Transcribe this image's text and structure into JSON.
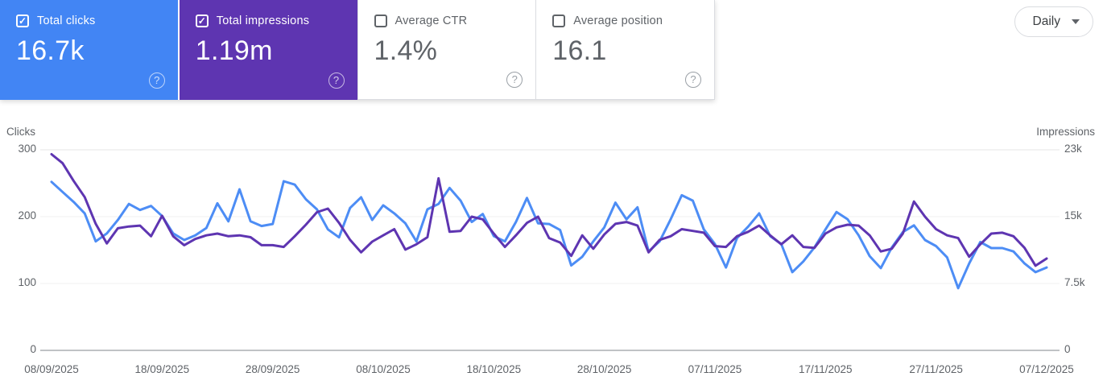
{
  "metrics": {
    "cards": [
      {
        "label": "Total clicks",
        "value": "16.7k",
        "checked": true,
        "bg": "#4285f4",
        "fg": "#ffffff",
        "help_icon": "?"
      },
      {
        "label": "Total impressions",
        "value": "1.19m",
        "checked": true,
        "bg": "#5e35b1",
        "fg": "#ffffff",
        "help_icon": "?"
      },
      {
        "label": "Average CTR",
        "value": "1.4%",
        "checked": false,
        "bg": "#ffffff",
        "fg": "#5f6368",
        "help_icon": "?"
      },
      {
        "label": "Average position",
        "value": "16.1",
        "checked": false,
        "bg": "#ffffff",
        "fg": "#5f6368",
        "help_icon": "?"
      }
    ]
  },
  "period_selector": {
    "label": "Daily",
    "icon": "dropdown-caret"
  },
  "chart_data": {
    "type": "line",
    "start_date": "08/09/2025",
    "end_date": "07/12/2025",
    "points_per_series": 91,
    "x_tick_labels": [
      "08/09/2025",
      "18/09/2025",
      "28/09/2025",
      "08/10/2025",
      "18/10/2025",
      "28/10/2025",
      "07/11/2025",
      "17/11/2025",
      "27/11/2025",
      "07/12/2025"
    ],
    "left_axis": {
      "title": "Clicks",
      "tick_labels": [
        "300",
        "200",
        "100",
        "0"
      ],
      "tick_values": [
        300,
        200,
        100,
        0
      ],
      "range": [
        0,
        300
      ]
    },
    "right_axis": {
      "title": "Impressions",
      "tick_labels": [
        "23k",
        "15k",
        "7.5k",
        "0"
      ],
      "tick_values": [
        23000,
        15000,
        7500,
        0
      ],
      "range": [
        0,
        22500
      ]
    },
    "grid": "horizontal",
    "legend_position": "none",
    "series": [
      {
        "name": "Clicks",
        "axis": "left",
        "color": "#4d8df5",
        "values": [
          252,
          237,
          222,
          205,
          163,
          175,
          195,
          219,
          210,
          216,
          201,
          175,
          165,
          172,
          183,
          220,
          193,
          241,
          193,
          186,
          189,
          253,
          248,
          226,
          211,
          181,
          169,
          213,
          229,
          195,
          217,
          205,
          190,
          163,
          211,
          219,
          243,
          224,
          192,
          204,
          171,
          163,
          192,
          228,
          190,
          189,
          180,
          127,
          140,
          163,
          184,
          221,
          196,
          214,
          148,
          163,
          196,
          232,
          224,
          181,
          159,
          124,
          168,
          185,
          205,
          171,
          159,
          117,
          133,
          154,
          181,
          207,
          196,
          172,
          141,
          123,
          154,
          177,
          187,
          165,
          156,
          139,
          93,
          130,
          162,
          153,
          153,
          148,
          130,
          117,
          124
        ]
      },
      {
        "name": "Impressions",
        "axis": "right",
        "color": "#5e35b1",
        "values": [
          22000,
          21000,
          19000,
          17200,
          14200,
          12000,
          13700,
          13900,
          14000,
          12800,
          15100,
          12800,
          11800,
          12500,
          12900,
          13100,
          12800,
          12900,
          12700,
          11800,
          11800,
          11600,
          12800,
          14100,
          15500,
          15900,
          14300,
          12400,
          11000,
          12200,
          12900,
          13600,
          11300,
          11900,
          12700,
          19300,
          13300,
          13400,
          15000,
          14700,
          13100,
          11600,
          12900,
          14300,
          15000,
          12600,
          12100,
          10600,
          12900,
          11400,
          13000,
          14200,
          14400,
          14000,
          11000,
          12400,
          12800,
          13600,
          13400,
          13200,
          11700,
          11600,
          12800,
          13300,
          14000,
          12900,
          11900,
          12900,
          11600,
          11500,
          13100,
          13800,
          14100,
          14000,
          12900,
          11100,
          11400,
          13100,
          16700,
          15000,
          13600,
          12900,
          12600,
          10500,
          11900,
          13100,
          13200,
          12800,
          11500,
          9500,
          10300
        ]
      }
    ]
  }
}
